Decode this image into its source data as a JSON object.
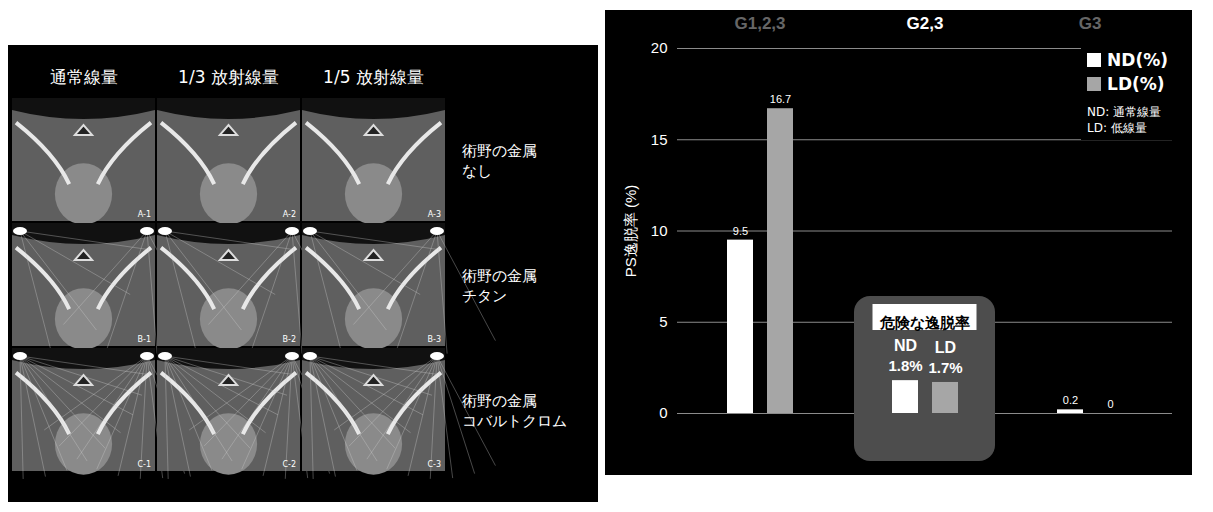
{
  "image_panel": {
    "column_titles": [
      "通常線量",
      "1/3 放射線量",
      "1/5 放射線量"
    ],
    "row_labels": [
      [
        "術野の金属",
        "なし"
      ],
      [
        "術野の金属",
        "チタン"
      ],
      [
        "術野の金属",
        "コバルトクロム"
      ]
    ],
    "image_labels": [
      [
        "A-1",
        "A-2",
        "A-3"
      ],
      [
        "B-1",
        "B-2",
        "B-3"
      ],
      [
        "C-1",
        "C-2",
        "C-3"
      ]
    ]
  },
  "chart_data": {
    "type": "bar",
    "y_label": "PS逸脱率 (%)",
    "categories": [
      "G1,2,3",
      "G2,3",
      "G3"
    ],
    "series": [
      {
        "name": "ND(%)",
        "color": "#ffffff",
        "values": [
          9.5,
          1.8,
          0.2
        ],
        "value_labels": [
          "9.5",
          "1.8%",
          "0.2"
        ]
      },
      {
        "name": "LD(%)",
        "color": "#a6a6a6",
        "values": [
          16.7,
          1.7,
          0
        ],
        "value_labels": [
          "16.7",
          "1.7%",
          "0"
        ]
      }
    ],
    "ylim": [
      0,
      20
    ],
    "yticks": [
      0,
      5,
      10,
      15,
      20
    ],
    "grid": true,
    "legend": "top-right",
    "data_labels": true,
    "annotations": [
      {
        "text": "ND: 通常線量"
      },
      {
        "text": "LD: 低線量"
      },
      {
        "text": "危険な逸脱率",
        "category": "G2,3",
        "series_labels": [
          "ND",
          "LD"
        ]
      }
    ]
  }
}
